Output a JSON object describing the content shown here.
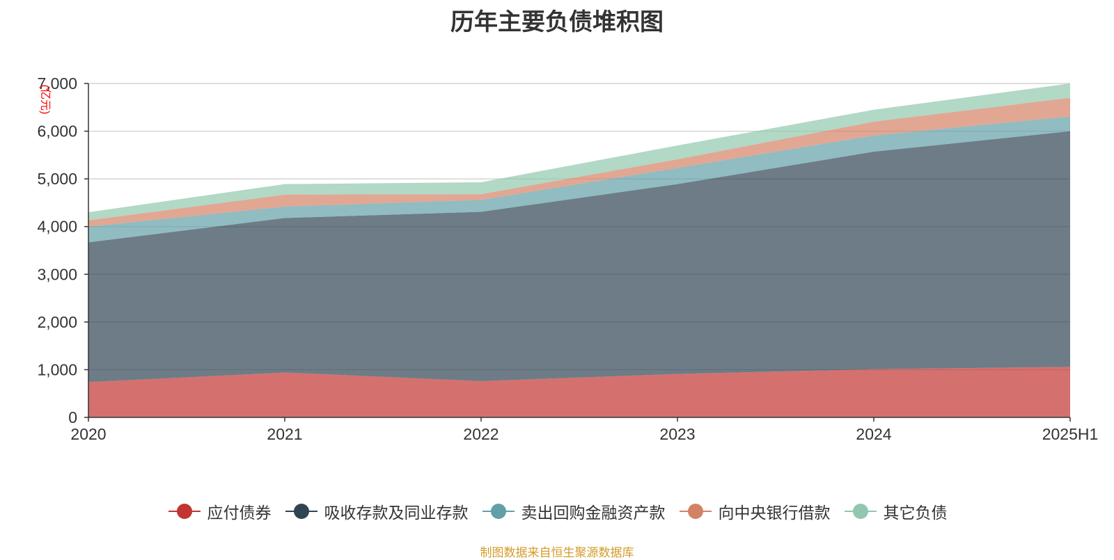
{
  "chart_data": {
    "type": "area",
    "stacked": true,
    "title": "历年主要负债堆积图",
    "ylabel": "(亿元)",
    "xlabel": "",
    "categories": [
      "2020",
      "2021",
      "2022",
      "2023",
      "2024",
      "2025H1"
    ],
    "ylim": [
      0,
      7000
    ],
    "yticks": [
      "0",
      "1,000",
      "2,000",
      "3,000",
      "4,000",
      "5,000",
      "6,000",
      "7,000"
    ],
    "ytick_values": [
      0,
      1000,
      2000,
      3000,
      4000,
      5000,
      6000,
      7000
    ],
    "grid": true,
    "legend_position": "bottom",
    "series": [
      {
        "name": "应付债券",
        "color": "#c23531",
        "values": [
          740,
          940,
          760,
          910,
          1010,
          1060
        ]
      },
      {
        "name": "吸收存款及同业存款",
        "color": "#2f4554",
        "values": [
          2930,
          3240,
          3550,
          3980,
          4560,
          4940
        ]
      },
      {
        "name": "卖出回购金融资产款",
        "color": "#61a0a8",
        "values": [
          330,
          240,
          250,
          340,
          340,
          310
        ]
      },
      {
        "name": "向中央银行借款",
        "color": "#d48265",
        "values": [
          130,
          250,
          120,
          180,
          290,
          390
        ]
      },
      {
        "name": "其它负债",
        "color": "#91c7ae",
        "values": [
          170,
          220,
          250,
          290,
          250,
          300
        ]
      }
    ]
  },
  "footer": {
    "source": "制图数据来自恒生聚源数据库"
  }
}
